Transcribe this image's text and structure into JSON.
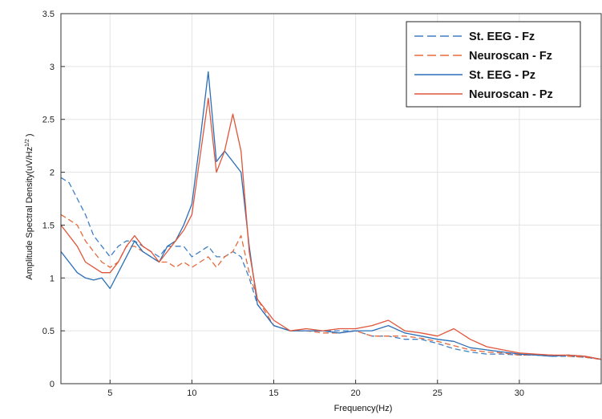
{
  "chart_data": {
    "type": "line",
    "title": "",
    "xlabel": "Frequency(Hz)",
    "ylabel": "Amplitude Spectral Density(uV/Hz",
    "ylabel_sup": "1/2",
    "ylabel_close": " )",
    "xlim": [
      2,
      35
    ],
    "ylim": [
      0,
      3.5
    ],
    "xticks": [
      5,
      10,
      15,
      20,
      25,
      30
    ],
    "yticks": [
      0,
      0.5,
      1,
      1.5,
      2,
      2.5,
      3,
      3.5
    ],
    "xtick_labels": [
      "5",
      "10",
      "15",
      "20",
      "25",
      "30"
    ],
    "ytick_labels": [
      "0",
      "0.5",
      "1",
      "1.5",
      "2",
      "2.5",
      "3",
      "3.5"
    ],
    "grid": true,
    "legend_position": "top-right",
    "series": [
      {
        "name": "St. EEG - Fz",
        "color": "#3f7fc4",
        "dash": true,
        "x": [
          2,
          2.5,
          3,
          3.5,
          4,
          4.5,
          5,
          5.5,
          6,
          6.5,
          7,
          7.5,
          8,
          8.5,
          9,
          9.5,
          10,
          10.5,
          11,
          11.5,
          12,
          12.5,
          13,
          13.5,
          14,
          15,
          16,
          17,
          18,
          19,
          20,
          21,
          22,
          23,
          24,
          25,
          26,
          27,
          28,
          29,
          30,
          31,
          32,
          33,
          34,
          35
        ],
        "y": [
          1.95,
          1.9,
          1.75,
          1.6,
          1.4,
          1.3,
          1.2,
          1.3,
          1.35,
          1.35,
          1.3,
          1.25,
          1.2,
          1.3,
          1.3,
          1.3,
          1.2,
          1.25,
          1.3,
          1.2,
          1.2,
          1.25,
          1.2,
          1.0,
          0.75,
          0.55,
          0.5,
          0.5,
          0.5,
          0.5,
          0.5,
          0.45,
          0.45,
          0.42,
          0.42,
          0.38,
          0.33,
          0.3,
          0.28,
          0.28,
          0.27,
          0.27,
          0.26,
          0.26,
          0.25,
          0.23
        ]
      },
      {
        "name": "Neuroscan - Fz",
        "color": "#e56a3c",
        "dash": true,
        "x": [
          2,
          2.5,
          3,
          3.5,
          4,
          4.5,
          5,
          5.5,
          6,
          6.5,
          7,
          7.5,
          8,
          8.5,
          9,
          9.5,
          10,
          10.5,
          11,
          11.5,
          12,
          12.5,
          13,
          13.5,
          14,
          15,
          16,
          17,
          18,
          19,
          20,
          21,
          22,
          23,
          24,
          25,
          26,
          27,
          28,
          29,
          30,
          31,
          32,
          33,
          34,
          35
        ],
        "y": [
          1.6,
          1.55,
          1.5,
          1.35,
          1.25,
          1.15,
          1.1,
          1.15,
          1.3,
          1.3,
          1.25,
          1.2,
          1.15,
          1.15,
          1.1,
          1.15,
          1.1,
          1.15,
          1.2,
          1.1,
          1.2,
          1.25,
          1.4,
          1.05,
          0.8,
          0.55,
          0.5,
          0.5,
          0.48,
          0.48,
          0.5,
          0.45,
          0.45,
          0.45,
          0.43,
          0.4,
          0.36,
          0.32,
          0.3,
          0.29,
          0.27,
          0.27,
          0.27,
          0.26,
          0.25,
          0.23
        ]
      },
      {
        "name": "St. EEG - Pz",
        "color": "#2a6fb8",
        "dash": false,
        "x": [
          2,
          2.5,
          3,
          3.5,
          4,
          4.5,
          5,
          5.5,
          6,
          6.5,
          7,
          7.5,
          8,
          8.5,
          9,
          9.5,
          10,
          10.5,
          11,
          11.5,
          12,
          12.5,
          13,
          13.5,
          14,
          15,
          16,
          17,
          18,
          19,
          20,
          21,
          22,
          23,
          24,
          25,
          26,
          27,
          28,
          29,
          30,
          31,
          32,
          33,
          34,
          35
        ],
        "y": [
          1.25,
          1.15,
          1.05,
          1.0,
          0.98,
          1.0,
          0.9,
          1.05,
          1.2,
          1.35,
          1.25,
          1.2,
          1.15,
          1.3,
          1.35,
          1.5,
          1.7,
          2.3,
          2.95,
          2.1,
          2.2,
          2.1,
          2.0,
          1.3,
          0.75,
          0.55,
          0.5,
          0.5,
          0.5,
          0.48,
          0.5,
          0.5,
          0.55,
          0.48,
          0.45,
          0.42,
          0.4,
          0.34,
          0.32,
          0.3,
          0.28,
          0.27,
          0.26,
          0.27,
          0.26,
          0.23
        ]
      },
      {
        "name": "Neuroscan - Pz",
        "color": "#e0553a",
        "dash": false,
        "x": [
          2,
          2.5,
          3,
          3.5,
          4,
          4.5,
          5,
          5.5,
          6,
          6.5,
          7,
          7.5,
          8,
          8.5,
          9,
          9.5,
          10,
          10.5,
          11,
          11.5,
          12,
          12.5,
          13,
          13.5,
          14,
          15,
          16,
          17,
          18,
          19,
          20,
          21,
          22,
          23,
          24,
          25,
          26,
          27,
          28,
          29,
          30,
          31,
          32,
          33,
          34,
          35
        ],
        "y": [
          1.5,
          1.4,
          1.3,
          1.15,
          1.1,
          1.05,
          1.05,
          1.15,
          1.3,
          1.4,
          1.3,
          1.25,
          1.15,
          1.25,
          1.35,
          1.45,
          1.6,
          2.15,
          2.7,
          2.0,
          2.2,
          2.55,
          2.2,
          1.25,
          0.8,
          0.6,
          0.5,
          0.52,
          0.5,
          0.52,
          0.52,
          0.55,
          0.6,
          0.5,
          0.48,
          0.45,
          0.52,
          0.42,
          0.35,
          0.32,
          0.29,
          0.28,
          0.27,
          0.27,
          0.26,
          0.23
        ]
      }
    ]
  }
}
